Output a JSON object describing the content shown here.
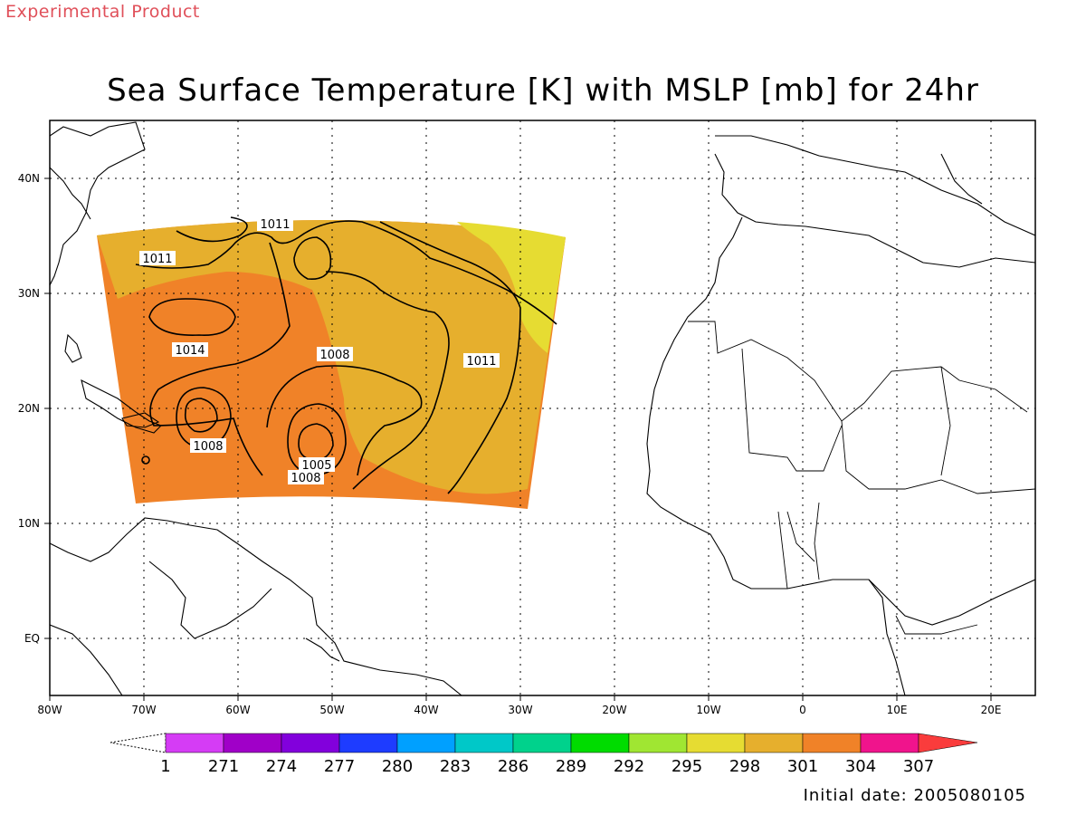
{
  "header": {
    "product_tag": "Experimental Product",
    "title": "Sea Surface Temperature [K] with MSLP [mb] for 24hr"
  },
  "footer": {
    "initial_date": "Initial date: 2005080105"
  },
  "map": {
    "x_ticks": [
      "80W",
      "70W",
      "60W",
      "50W",
      "40W",
      "30W",
      "20W",
      "10W",
      "0",
      "10E",
      "20E"
    ],
    "y_ticks": [
      "40N",
      "30N",
      "20N",
      "10N",
      "EQ"
    ],
    "grid": true,
    "contour_labels": [
      "1011",
      "1011",
      "1011",
      "1014",
      "1008",
      "1008",
      "1005",
      "1008"
    ]
  },
  "colorbar": {
    "unit": "K",
    "labels": [
      "1",
      "271",
      "274",
      "277",
      "280",
      "283",
      "286",
      "289",
      "292",
      "295",
      "298",
      "301",
      "304",
      "307"
    ],
    "colors": [
      "#d53cf5",
      "#a000c8",
      "#8200dc",
      "#1e3cff",
      "#00a0ff",
      "#00c8c8",
      "#00d28c",
      "#00dc00",
      "#a0e632",
      "#e6dc32",
      "#e6af2d",
      "#f08228",
      "#f0148c",
      "#fa3c3c"
    ]
  }
}
